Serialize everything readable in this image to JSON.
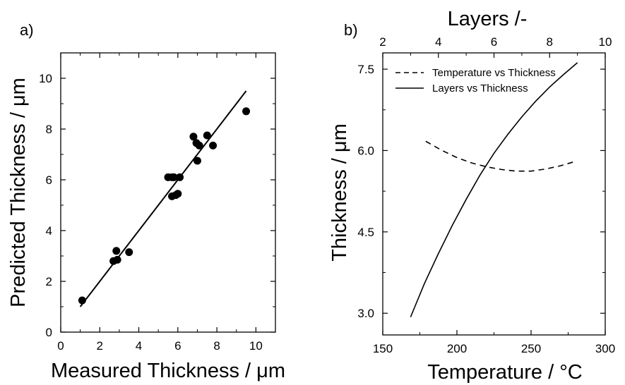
{
  "chart_data": [
    {
      "panel_label": "a)",
      "type": "scatter",
      "xlabel": "Measured Thickness / μm",
      "ylabel": "Predicted Thickness / μm",
      "xlim": [
        0,
        11
      ],
      "ylim": [
        0,
        11
      ],
      "xticks": [
        0,
        2,
        4,
        6,
        8,
        10
      ],
      "yticks": [
        0,
        2,
        4,
        6,
        8,
        10
      ],
      "points": [
        [
          1.1,
          1.25
        ],
        [
          2.7,
          2.8
        ],
        [
          2.9,
          2.85
        ],
        [
          2.85,
          3.2
        ],
        [
          3.5,
          3.15
        ],
        [
          5.5,
          6.1
        ],
        [
          5.7,
          6.1
        ],
        [
          5.8,
          6.1
        ],
        [
          6.1,
          6.1
        ],
        [
          5.7,
          5.35
        ],
        [
          5.9,
          5.4
        ],
        [
          6.0,
          5.45
        ],
        [
          6.8,
          7.7
        ],
        [
          6.95,
          7.45
        ],
        [
          7.1,
          7.35
        ],
        [
          7.0,
          6.75
        ],
        [
          7.5,
          7.75
        ],
        [
          7.8,
          7.35
        ],
        [
          9.5,
          8.7
        ]
      ],
      "fit_line": [
        [
          1.0,
          1.0
        ],
        [
          9.5,
          9.5
        ]
      ]
    },
    {
      "panel_label": "b)",
      "type": "line",
      "xlabel": "Temperature / °C",
      "ylabel": "Thickness / μm",
      "x2label": "Layers /-",
      "xlim": [
        150,
        300
      ],
      "ylim": [
        2.6,
        7.8
      ],
      "x2lim": [
        2,
        10
      ],
      "xticks": [
        150,
        200,
        250,
        300
      ],
      "yticks": [
        3.0,
        4.5,
        6.0,
        7.5
      ],
      "x2ticks": [
        2,
        4,
        6,
        8,
        10
      ],
      "legend_position": "top-left",
      "series": [
        {
          "name": "Temperature vs Thickness",
          "axis": "bottom",
          "style": "dashed",
          "x": [
            179,
            190,
            200,
            210,
            220,
            230,
            240,
            250,
            260,
            270,
            280
          ],
          "y": [
            6.17,
            6.0,
            5.87,
            5.77,
            5.7,
            5.65,
            5.62,
            5.62,
            5.66,
            5.72,
            5.8
          ]
        },
        {
          "name": "Layers vs Thickness",
          "axis": "top",
          "style": "solid",
          "x": [
            3.0,
            3.5,
            4.0,
            4.5,
            5.0,
            5.5,
            6.0,
            6.5,
            7.0,
            7.5,
            8.0,
            8.5,
            9.0
          ],
          "y": [
            2.93,
            3.55,
            4.1,
            4.62,
            5.1,
            5.55,
            5.95,
            6.3,
            6.62,
            6.91,
            7.17,
            7.4,
            7.62
          ]
        }
      ]
    }
  ]
}
